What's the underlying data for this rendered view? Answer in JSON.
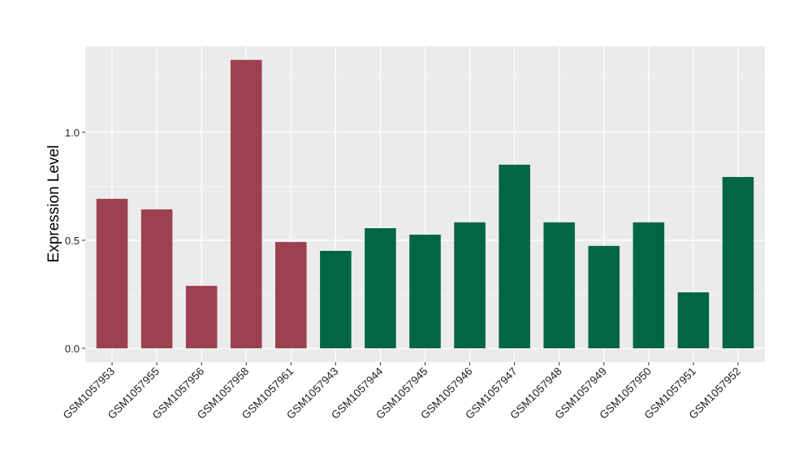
{
  "chart_data": {
    "type": "bar",
    "title": "",
    "xlabel": "",
    "ylabel": "Expression Level",
    "ylim": [
      -0.064,
      1.398
    ],
    "yticks": [
      0.0,
      0.5,
      1.0
    ],
    "ytick_labels": [
      "0.0",
      "0.5",
      "1.0"
    ],
    "grid": true,
    "legend": "none",
    "categories": [
      "GSM1057953",
      "GSM1057955",
      "GSM1057956",
      "GSM1057958",
      "GSM1057961",
      "GSM1057943",
      "GSM1057944",
      "GSM1057945",
      "GSM1057946",
      "GSM1057947",
      "GSM1057948",
      "GSM1057949",
      "GSM1057950",
      "GSM1057951",
      "GSM1057952"
    ],
    "values": [
      0.692,
      0.643,
      0.289,
      1.335,
      0.492,
      0.451,
      0.556,
      0.526,
      0.583,
      0.85,
      0.583,
      0.474,
      0.583,
      0.259,
      0.793
    ],
    "groups": [
      "a",
      "a",
      "a",
      "a",
      "a",
      "b",
      "b",
      "b",
      "b",
      "b",
      "b",
      "b",
      "b",
      "b",
      "b"
    ],
    "colors": {
      "a": "#9b4150",
      "b": "#006644"
    }
  }
}
